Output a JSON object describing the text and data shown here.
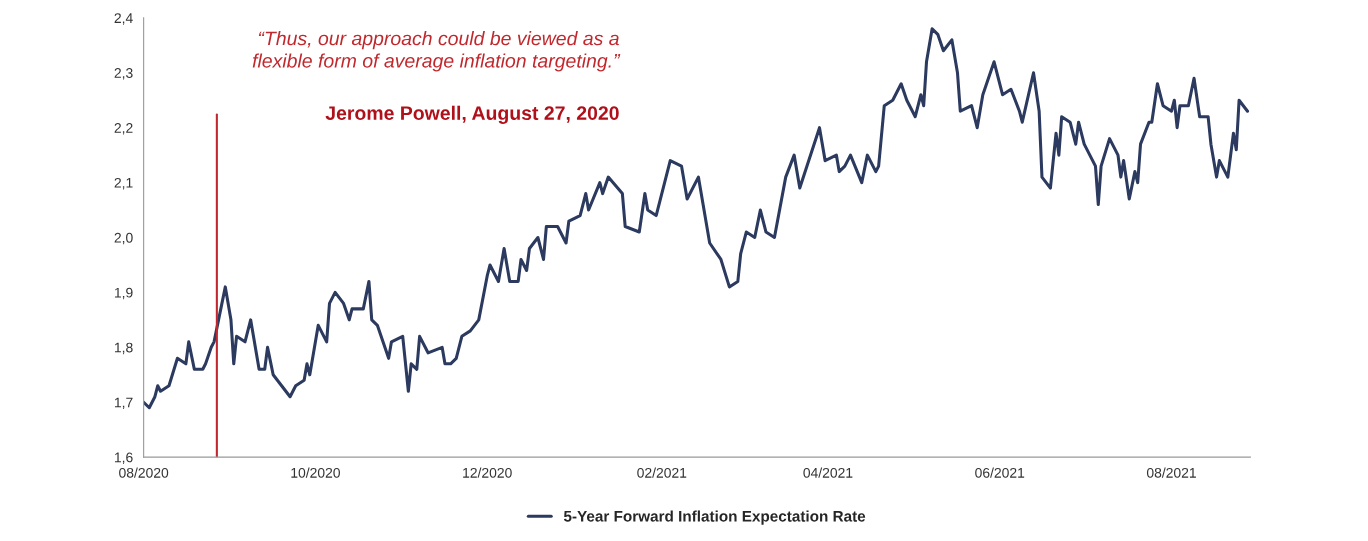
{
  "chart_data": {
    "type": "line",
    "x": [
      "2020-08-01",
      "2020-08-03",
      "2020-08-05",
      "2020-08-06",
      "2020-08-07",
      "2020-08-10",
      "2020-08-13",
      "2020-08-16",
      "2020-08-17",
      "2020-08-19",
      "2020-08-22",
      "2020-08-23",
      "2020-08-25",
      "2020-08-26",
      "2020-08-30",
      "2020-09-01",
      "2020-09-02",
      "2020-09-03",
      "2020-09-06",
      "2020-09-08",
      "2020-09-09",
      "2020-09-11",
      "2020-09-13",
      "2020-09-14",
      "2020-09-16",
      "2020-09-19",
      "2020-09-22",
      "2020-09-24",
      "2020-09-27",
      "2020-09-28",
      "2020-09-29",
      "2020-10-02",
      "2020-10-05",
      "2020-10-06",
      "2020-10-08",
      "2020-10-11",
      "2020-10-13",
      "2020-10-14",
      "2020-10-18",
      "2020-10-20",
      "2020-10-21",
      "2020-10-23",
      "2020-10-25",
      "2020-10-27",
      "2020-10-28",
      "2020-11-01",
      "2020-11-03",
      "2020-11-04",
      "2020-11-06",
      "2020-11-07",
      "2020-11-10",
      "2020-11-15",
      "2020-11-16",
      "2020-11-18",
      "2020-11-20",
      "2020-11-22",
      "2020-11-25",
      "2020-11-28",
      "2020-12-01",
      "2020-12-02",
      "2020-12-05",
      "2020-12-07",
      "2020-12-09",
      "2020-12-12",
      "2020-12-13",
      "2020-12-15",
      "2020-12-16",
      "2020-12-19",
      "2020-12-21",
      "2020-12-22",
      "2020-12-26",
      "2020-12-29",
      "2020-12-30",
      "2021-01-03",
      "2021-01-05",
      "2021-01-06",
      "2021-01-10",
      "2021-01-11",
      "2021-01-13",
      "2021-01-18",
      "2021-01-19",
      "2021-01-24",
      "2021-01-26",
      "2021-01-27",
      "2021-01-30",
      "2021-02-02",
      "2021-02-04",
      "2021-02-08",
      "2021-02-10",
      "2021-02-14",
      "2021-02-18",
      "2021-02-22",
      "2021-02-25",
      "2021-02-28",
      "2021-03-01",
      "2021-03-03",
      "2021-03-06",
      "2021-03-08",
      "2021-03-10",
      "2021-03-13",
      "2021-03-17",
      "2021-03-20",
      "2021-03-22",
      "2021-03-29",
      "2021-03-31",
      "2021-04-04",
      "2021-04-05",
      "2021-04-07",
      "2021-04-09",
      "2021-04-13",
      "2021-04-15",
      "2021-04-18",
      "2021-04-19",
      "2021-04-21",
      "2021-04-24",
      "2021-04-27",
      "2021-04-29",
      "2021-05-02",
      "2021-05-04",
      "2021-05-05",
      "2021-05-06",
      "2021-05-08",
      "2021-05-10",
      "2021-05-12",
      "2021-05-15",
      "2021-05-17",
      "2021-05-18",
      "2021-05-22",
      "2021-05-24",
      "2021-05-26",
      "2021-05-30",
      "2021-06-02",
      "2021-06-05",
      "2021-06-08",
      "2021-06-09",
      "2021-06-13",
      "2021-06-15",
      "2021-06-16",
      "2021-06-19",
      "2021-06-21",
      "2021-06-22",
      "2021-06-23",
      "2021-06-26",
      "2021-06-28",
      "2021-06-29",
      "2021-07-01",
      "2021-07-05",
      "2021-07-06",
      "2021-07-07",
      "2021-07-10",
      "2021-07-13",
      "2021-07-14",
      "2021-07-15",
      "2021-07-17",
      "2021-07-19",
      "2021-07-20",
      "2021-07-21",
      "2021-07-24",
      "2021-07-25",
      "2021-07-27",
      "2021-07-29",
      "2021-08-01",
      "2021-08-02",
      "2021-08-03",
      "2021-08-04",
      "2021-08-07",
      "2021-08-09",
      "2021-08-11",
      "2021-08-14",
      "2021-08-15",
      "2021-08-17",
      "2021-08-18",
      "2021-08-21",
      "2021-08-23",
      "2021-08-24",
      "2021-08-25",
      "2021-08-28"
    ],
    "series": [
      {
        "name": "5-Year Forward Inflation Expectation Rate",
        "color": "#2b3a5e",
        "values": [
          1.7,
          1.69,
          1.71,
          1.73,
          1.72,
          1.73,
          1.78,
          1.77,
          1.81,
          1.76,
          1.76,
          1.77,
          1.8,
          1.81,
          1.91,
          1.85,
          1.77,
          1.82,
          1.81,
          1.85,
          1.82,
          1.76,
          1.76,
          1.8,
          1.75,
          1.73,
          1.71,
          1.73,
          1.74,
          1.77,
          1.75,
          1.84,
          1.81,
          1.88,
          1.9,
          1.88,
          1.85,
          1.87,
          1.87,
          1.92,
          1.85,
          1.84,
          1.81,
          1.78,
          1.81,
          1.82,
          1.72,
          1.77,
          1.76,
          1.82,
          1.79,
          1.8,
          1.77,
          1.77,
          1.78,
          1.82,
          1.83,
          1.85,
          1.93,
          1.95,
          1.92,
          1.98,
          1.92,
          1.92,
          1.96,
          1.94,
          1.98,
          2.0,
          1.96,
          2.02,
          2.02,
          1.99,
          2.03,
          2.04,
          2.08,
          2.05,
          2.1,
          2.08,
          2.11,
          2.08,
          2.02,
          2.01,
          2.08,
          2.05,
          2.04,
          2.1,
          2.14,
          2.13,
          2.07,
          2.11,
          1.99,
          1.96,
          1.91,
          1.92,
          1.97,
          2.01,
          2.0,
          2.05,
          2.01,
          2.0,
          2.11,
          2.15,
          2.09,
          2.2,
          2.14,
          2.15,
          2.12,
          2.13,
          2.15,
          2.1,
          2.15,
          2.12,
          2.13,
          2.24,
          2.25,
          2.28,
          2.25,
          2.22,
          2.26,
          2.24,
          2.32,
          2.38,
          2.37,
          2.34,
          2.36,
          2.3,
          2.23,
          2.24,
          2.2,
          2.26,
          2.32,
          2.26,
          2.27,
          2.23,
          2.21,
          2.3,
          2.23,
          2.11,
          2.09,
          2.19,
          2.15,
          2.22,
          2.21,
          2.17,
          2.21,
          2.17,
          2.13,
          2.06,
          2.13,
          2.18,
          2.15,
          2.11,
          2.14,
          2.07,
          2.12,
          2.1,
          2.17,
          2.21,
          2.21,
          2.28,
          2.24,
          2.23,
          2.25,
          2.2,
          2.24,
          2.24,
          2.29,
          2.22,
          2.22,
          2.17,
          2.11,
          2.14,
          2.11,
          2.19,
          2.16,
          2.25,
          2.23
        ]
      }
    ],
    "xlim": [
      "2020-08-01",
      "2021-08-29"
    ],
    "xticks": [
      {
        "value": "2020-08-01",
        "label": "08/2020"
      },
      {
        "value": "2020-10-01",
        "label": "10/2020"
      },
      {
        "value": "2020-12-01",
        "label": "12/2020"
      },
      {
        "value": "2021-02-01",
        "label": "02/2021"
      },
      {
        "value": "2021-04-01",
        "label": "04/2021"
      },
      {
        "value": "2021-06-01",
        "label": "06/2021"
      },
      {
        "value": "2021-08-01",
        "label": "08/2021"
      }
    ],
    "ylim": [
      1.6,
      2.4
    ],
    "yticks": [
      {
        "value": 1.6,
        "label": "1,6"
      },
      {
        "value": 1.7,
        "label": "1,7"
      },
      {
        "value": 1.8,
        "label": "1,8"
      },
      {
        "value": 1.9,
        "label": "1,9"
      },
      {
        "value": 2.0,
        "label": "2,0"
      },
      {
        "value": 2.1,
        "label": "2,1"
      },
      {
        "value": 2.2,
        "label": "2,2"
      },
      {
        "value": 2.3,
        "label": "2,3"
      },
      {
        "value": 2.4,
        "label": "2,4"
      }
    ],
    "ref_lines": [
      {
        "axis": "x",
        "value": "2020-08-27",
        "color": "#c0282d"
      }
    ],
    "annotations": [
      "“Thus, our approach could be viewed as a\nflexible form of average inflation targeting.”",
      "Jerome Powell, August 27, 2020"
    ],
    "legend": "bottom",
    "grid": false
  }
}
